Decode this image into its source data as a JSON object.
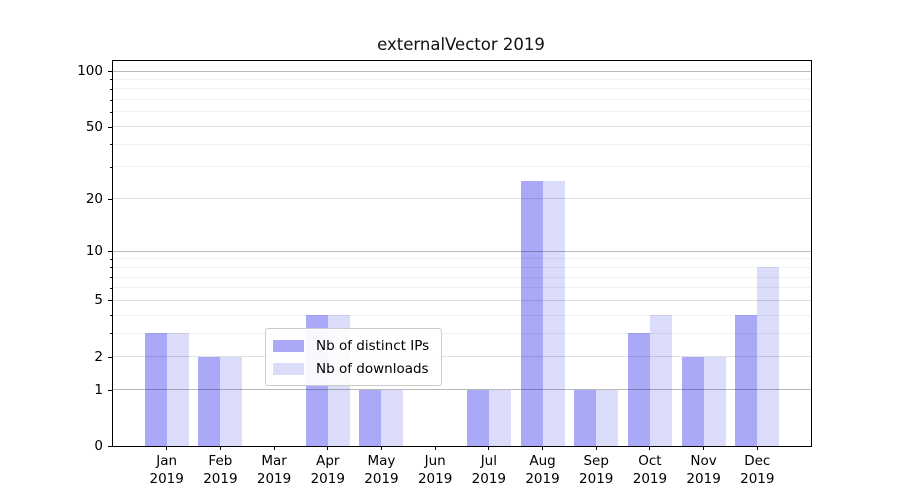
{
  "chart_data": {
    "type": "bar",
    "title": "externalVector 2019",
    "categories": [
      "Jan 2019",
      "Feb 2019",
      "Mar 2019",
      "Apr 2019",
      "May 2019",
      "Jun 2019",
      "Jul 2019",
      "Aug 2019",
      "Sep 2019",
      "Oct 2019",
      "Nov 2019",
      "Dec 2019"
    ],
    "series": [
      {
        "name": "Nb of distinct IPs",
        "color": "#a9a9f8",
        "values": [
          3,
          2,
          0,
          4,
          1,
          0,
          1,
          25,
          1,
          3,
          2,
          4
        ]
      },
      {
        "name": "Nb of downloads",
        "color": "#dbdbfa",
        "values": [
          3,
          2,
          0,
          4,
          1,
          0,
          1,
          25,
          1,
          4,
          2,
          8
        ]
      }
    ],
    "xlabel": "",
    "ylabel": "",
    "y_scale": "log10(value+1)",
    "y_ticks": [
      0,
      1,
      2,
      5,
      10,
      20,
      50,
      100
    ],
    "y_minor_ticks": [
      3,
      4,
      6,
      7,
      8,
      9,
      30,
      40,
      60,
      70,
      80,
      90
    ],
    "ylim": [
      0,
      113
    ],
    "grid": "horizontal",
    "legend_position": "lower-center-inside",
    "colors": {
      "spine": "#000000",
      "grid_decade": "#bababa",
      "grid_labeled": "#e0e0e0",
      "grid_minor": "#efefef",
      "background": "#ffffff",
      "text": "#000000"
    }
  }
}
